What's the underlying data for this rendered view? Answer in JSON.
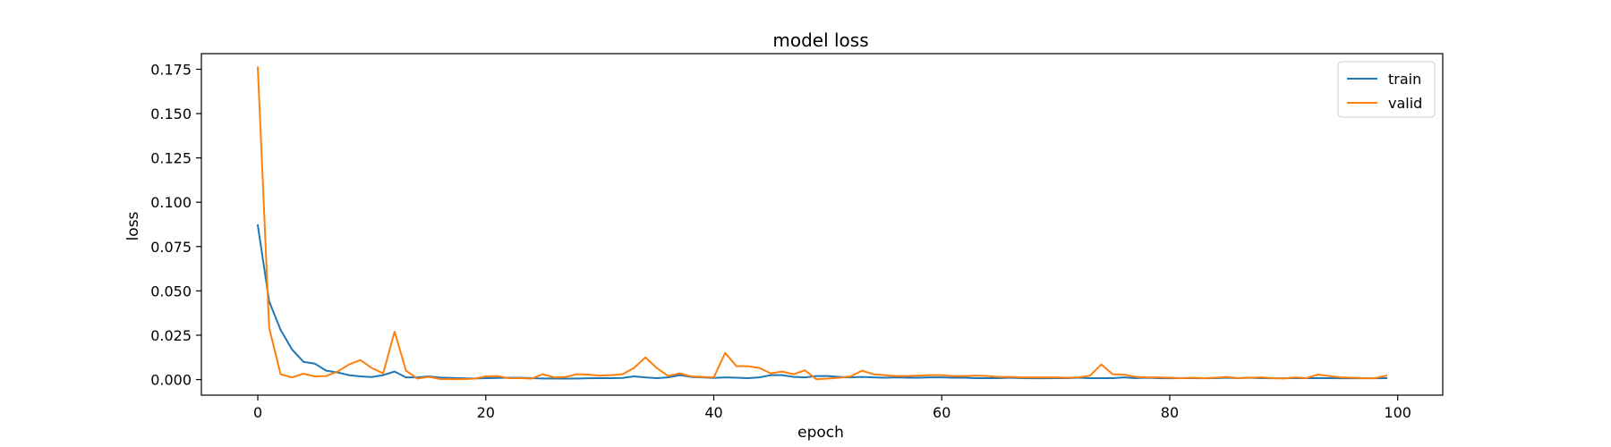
{
  "chart_data": {
    "type": "line",
    "title": "model loss",
    "xlabel": "epoch",
    "ylabel": "loss",
    "xlim": [
      -4.95,
      103.95
    ],
    "ylim": [
      -0.0088,
      0.1838
    ],
    "xticks": [
      0,
      20,
      40,
      60,
      80,
      100
    ],
    "xtick_labels": [
      "0",
      "20",
      "40",
      "60",
      "80",
      "100"
    ],
    "yticks": [
      0.0,
      0.025,
      0.05,
      0.075,
      0.1,
      0.125,
      0.15,
      0.175
    ],
    "ytick_labels": [
      "0.000",
      "0.025",
      "0.050",
      "0.075",
      "0.100",
      "0.125",
      "0.150",
      "0.175"
    ],
    "grid": false,
    "legend": "top-right",
    "series": [
      {
        "name": "train",
        "color": "#1f77b4",
        "values": [
          0.087,
          0.044,
          0.028,
          0.017,
          0.01,
          0.009,
          0.005,
          0.004,
          0.0025,
          0.0018,
          0.0014,
          0.0025,
          0.0045,
          0.0012,
          0.0012,
          0.0018,
          0.0011,
          0.0009,
          0.0007,
          0.0006,
          0.0008,
          0.0009,
          0.001,
          0.001,
          0.0008,
          0.0006,
          0.0006,
          0.0005,
          0.0006,
          0.0007,
          0.0008,
          0.0008,
          0.0009,
          0.0018,
          0.0012,
          0.0008,
          0.0012,
          0.0025,
          0.0015,
          0.0012,
          0.0009,
          0.0012,
          0.001,
          0.0008,
          0.0012,
          0.0025,
          0.0025,
          0.0015,
          0.0012,
          0.002,
          0.002,
          0.0015,
          0.0012,
          0.0015,
          0.0012,
          0.001,
          0.0012,
          0.001,
          0.001,
          0.0012,
          0.0012,
          0.001,
          0.001,
          0.0008,
          0.0008,
          0.0008,
          0.001,
          0.0008,
          0.0007,
          0.0007,
          0.0008,
          0.0008,
          0.001,
          0.0008,
          0.0008,
          0.0008,
          0.0012,
          0.0008,
          0.001,
          0.0008,
          0.0007,
          0.0008,
          0.0008,
          0.0007,
          0.0008,
          0.001,
          0.0008,
          0.001,
          0.0008,
          0.0007,
          0.0007,
          0.0008,
          0.0008,
          0.0008,
          0.0008,
          0.0007,
          0.0008,
          0.0007,
          0.0007,
          0.0008
        ]
      },
      {
        "name": "valid",
        "color": "#ff7f0e",
        "values": [
          0.176,
          0.029,
          0.003,
          0.0012,
          0.0033,
          0.0018,
          0.002,
          0.0045,
          0.0085,
          0.011,
          0.0065,
          0.0035,
          0.027,
          0.005,
          0.0005,
          0.0015,
          0.0003,
          0.0002,
          0.0002,
          0.0005,
          0.0018,
          0.002,
          0.0008,
          0.0008,
          0.0005,
          0.003,
          0.0012,
          0.0015,
          0.003,
          0.0028,
          0.0022,
          0.0025,
          0.003,
          0.0065,
          0.0125,
          0.0065,
          0.002,
          0.0035,
          0.0018,
          0.0015,
          0.0012,
          0.015,
          0.0075,
          0.0075,
          0.0065,
          0.0035,
          0.0045,
          0.003,
          0.0052,
          0.0002,
          0.0005,
          0.001,
          0.0018,
          0.005,
          0.003,
          0.0025,
          0.002,
          0.002,
          0.0022,
          0.0025,
          0.0025,
          0.002,
          0.002,
          0.0022,
          0.002,
          0.0015,
          0.0015,
          0.0012,
          0.0012,
          0.0012,
          0.0012,
          0.001,
          0.0012,
          0.0022,
          0.0085,
          0.003,
          0.0028,
          0.0015,
          0.0012,
          0.0012,
          0.001,
          0.0008,
          0.001,
          0.0008,
          0.001,
          0.0015,
          0.0008,
          0.001,
          0.0012,
          0.0008,
          0.0006,
          0.0012,
          0.0008,
          0.0028,
          0.002,
          0.0012,
          0.001,
          0.0008,
          0.0008,
          0.0022
        ]
      }
    ]
  }
}
